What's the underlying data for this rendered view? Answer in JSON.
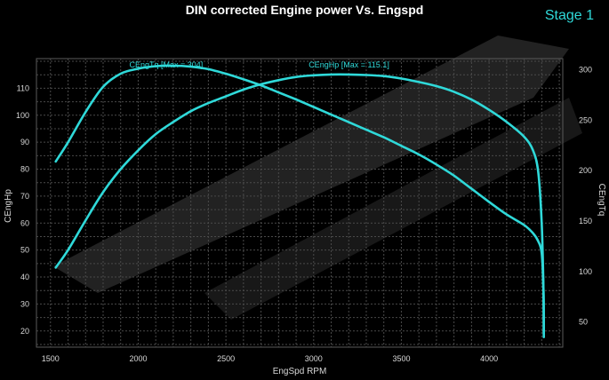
{
  "title": "DIN corrected Engine power Vs. Engspd",
  "badge": "Stage 1",
  "colors": {
    "curve": "#2fd9d9",
    "background": "#000000",
    "grid": "#4a4a4a",
    "text": "#d8d8d8"
  },
  "chart_data": {
    "type": "line",
    "title": "DIN corrected Engine power Vs. Engspd",
    "xlabel": "EngSpd RPM",
    "ylabel_left": "CEngHp",
    "ylabel_right": "CEngTq",
    "xlim": [
      1420,
      4420
    ],
    "ylim_left": [
      14,
      121
    ],
    "ylim_right": [
      25,
      311
    ],
    "x_ticks": [
      1500,
      2000,
      2500,
      3000,
      3500,
      4000
    ],
    "y_left_ticks": [
      20,
      30,
      40,
      50,
      60,
      70,
      80,
      90,
      100,
      110
    ],
    "y_right_ticks": [
      50,
      100,
      150,
      200,
      250,
      300
    ],
    "grid": true,
    "series": [
      {
        "name": "CEngHp",
        "label": "CEngHp [Max = 115.1]",
        "axis": "left",
        "x": [
          1530,
          1600,
          1700,
          1800,
          1900,
          2000,
          2100,
          2200,
          2300,
          2400,
          2500,
          2600,
          2700,
          2800,
          2900,
          3000,
          3100,
          3200,
          3300,
          3400,
          3500,
          3600,
          3700,
          3800,
          3900,
          4000,
          4100,
          4200,
          4250,
          4280,
          4300,
          4310,
          4312
        ],
        "values": [
          43.5,
          50,
          61,
          71.5,
          80,
          87,
          93,
          97.5,
          101.5,
          104.5,
          107,
          109.5,
          111.5,
          113,
          114.2,
          114.8,
          115.1,
          115.1,
          114.9,
          114.5,
          113.6,
          112.3,
          110.8,
          108.7,
          105.8,
          102,
          97.5,
          92,
          87,
          79,
          60,
          35,
          19
        ]
      },
      {
        "name": "CEngTq",
        "label": "CEngTq [Max = 304]",
        "axis": "right",
        "x": [
          1530,
          1600,
          1700,
          1800,
          1900,
          2000,
          2100,
          2200,
          2300,
          2400,
          2500,
          2600,
          2700,
          2800,
          2900,
          3000,
          3100,
          3200,
          3300,
          3400,
          3500,
          3600,
          3700,
          3800,
          3900,
          4000,
          4100,
          4200,
          4250,
          4280,
          4300,
          4310,
          4312
        ],
        "values": [
          209,
          228,
          258,
          283,
          296,
          301,
          303.5,
          304,
          303,
          300.5,
          296,
          290.5,
          284.5,
          277.5,
          270.5,
          263,
          255.5,
          248,
          240.5,
          233,
          224.5,
          216,
          206,
          195,
          182,
          169,
          156.5,
          146,
          138,
          130,
          118,
          80,
          35
        ]
      }
    ]
  }
}
